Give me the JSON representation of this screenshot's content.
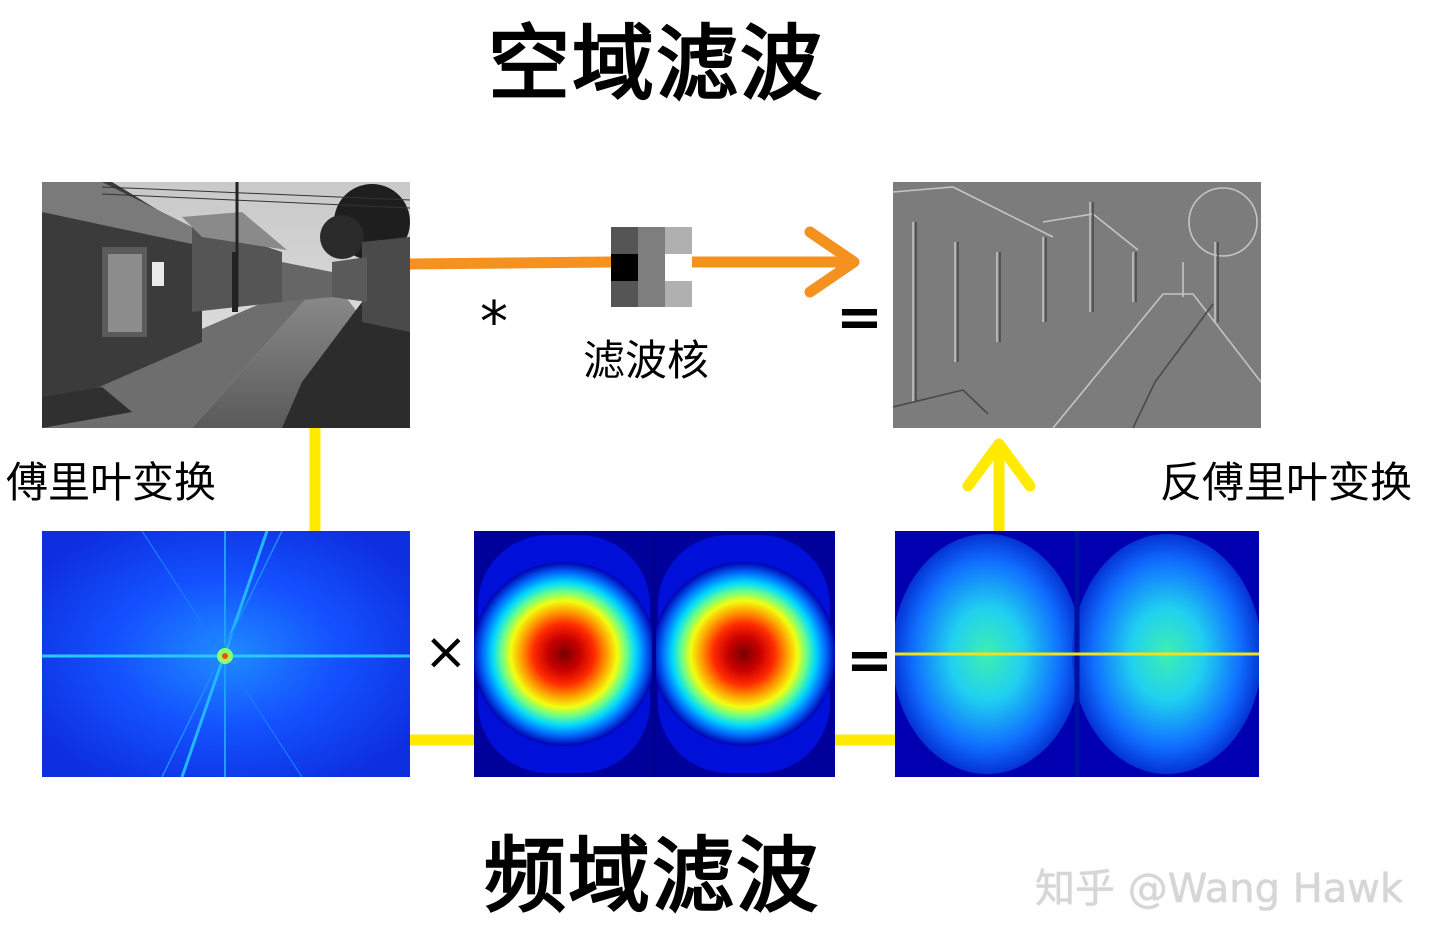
{
  "titles": {
    "spatial": "空域滤波",
    "frequency": "频域滤波"
  },
  "labels": {
    "fourier": "傅里叶变换",
    "inverse_fourier": "反傅里叶变换",
    "kernel": "滤波核"
  },
  "operators": {
    "convolution": "*",
    "equals_top": "=",
    "multiply": "×",
    "equals_bottom": "="
  },
  "watermark": "知乎 @Wang Hawk",
  "colors": {
    "orange_arrow": "#f5911f",
    "yellow_arrow": "#ffea00",
    "jet_low": "#0000a0",
    "jet_high": "#7a0000"
  },
  "icons": {
    "spatial_image": "grayscale-street-photo",
    "filtered_image": "edge-embossed-street-photo",
    "kernel": "3x3-filter-kernel",
    "spectrum": "fft-magnitude-spectrum",
    "frequency_filter": "frequency-response-heatmap",
    "filtered_spectrum": "filtered-fft-spectrum"
  }
}
